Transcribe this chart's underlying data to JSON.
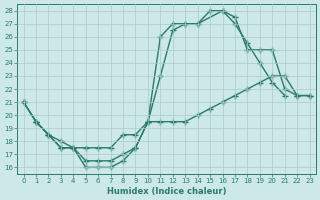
{
  "xlabel": "Humidex (Indice chaleur)",
  "xlim": [
    -0.5,
    23.5
  ],
  "ylim": [
    15.5,
    28.5
  ],
  "yticks": [
    16,
    17,
    18,
    19,
    20,
    21,
    22,
    23,
    24,
    25,
    26,
    27,
    28
  ],
  "xticks": [
    0,
    1,
    2,
    3,
    4,
    5,
    6,
    7,
    8,
    9,
    10,
    11,
    12,
    13,
    14,
    15,
    16,
    17,
    18,
    19,
    20,
    21,
    22,
    23
  ],
  "line_color": "#2a7b6a",
  "bg_color": "#cce8e8",
  "grid_color": "#aacccc",
  "line1_x": [
    0,
    1,
    2,
    3,
    4,
    5,
    6,
    7,
    8,
    9,
    10,
    11,
    12,
    13,
    14,
    15,
    16,
    17,
    18,
    19,
    20,
    21
  ],
  "line1_y": [
    21,
    19.5,
    18.5,
    17.5,
    17.5,
    16,
    16,
    16,
    16.5,
    17.5,
    19.5,
    26.0,
    27.0,
    27.0,
    27.0,
    28.0,
    28.0,
    27.0,
    25.5,
    24.0,
    22.5,
    21.5
  ],
  "line2_x": [
    0,
    1,
    2,
    3,
    4,
    5,
    6,
    7,
    8,
    9,
    10,
    11,
    12,
    13,
    14,
    16,
    17,
    18,
    19,
    20,
    21,
    22,
    23
  ],
  "line2_y": [
    21,
    19.5,
    18.5,
    17.5,
    17.5,
    16.5,
    16.5,
    16.5,
    17.0,
    17.5,
    19.5,
    23.0,
    26.5,
    27.0,
    27.0,
    28.0,
    27.5,
    25.0,
    25.0,
    25.0,
    22.0,
    21.5,
    21.5
  ],
  "line3_x": [
    0,
    1,
    2,
    3,
    4,
    5,
    6,
    7,
    8,
    9,
    10,
    11,
    12,
    13,
    14,
    15,
    16,
    17,
    18,
    19,
    20,
    21,
    22,
    23
  ],
  "line3_y": [
    21,
    19.5,
    18.5,
    18,
    17.5,
    17.5,
    17.5,
    17.5,
    18.5,
    18.5,
    19.5,
    19.5,
    19.5,
    19.5,
    20.0,
    20.5,
    21.0,
    21.5,
    22.0,
    22.5,
    23.0,
    23.0,
    21.5,
    21.5
  ]
}
